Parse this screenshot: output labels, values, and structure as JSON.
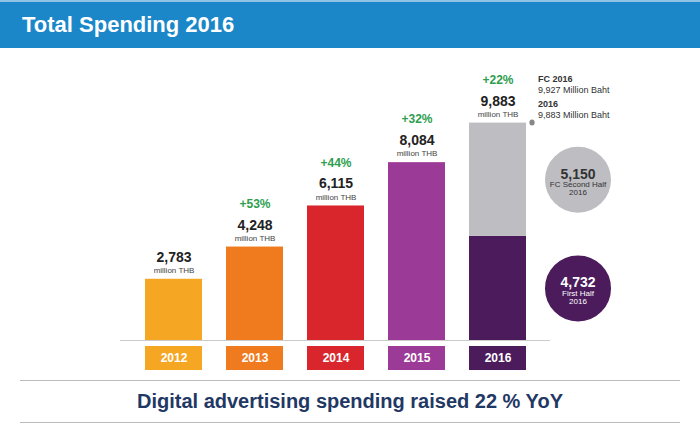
{
  "chart_data": {
    "type": "bar",
    "title": "Total Spending 2016",
    "caption": "Digital advertising spending raised 22 % YoY",
    "unit": "million THB",
    "categories": [
      "2012",
      "2013",
      "2014",
      "2015",
      "2016"
    ],
    "values": [
      2783,
      4248,
      6115,
      8084,
      9883
    ],
    "value_labels": [
      "2,783",
      "4,248",
      "6,115",
      "8,084",
      "9,883"
    ],
    "colors": [
      "#f5a623",
      "#f07a1e",
      "#d8262c",
      "#9c3a97",
      "#4b1b5c"
    ],
    "data_labels": true,
    "tick_labels": "x",
    "ylim": [
      0,
      12000
    ],
    "growth": [
      {
        "category": "2013",
        "value": 53,
        "label": "+53%"
      },
      {
        "category": "2014",
        "value": 44,
        "label": "+44%"
      },
      {
        "category": "2015",
        "value": 32,
        "label": "+32%"
      },
      {
        "category": "2016",
        "value": 22,
        "label": "+22%"
      }
    ],
    "breakdown": {
      "category": "2016",
      "segments": [
        {
          "name": "First Half 2016",
          "value": 4732,
          "value_label": "4,732",
          "color": "#4b1b5c"
        },
        {
          "name": "FC Second Half 2016",
          "value": 5150,
          "value_label": "5,150",
          "color": "#bdbdc2"
        }
      ]
    },
    "annotations": [
      {
        "text": "FC 2016",
        "value": 9927,
        "label": "9,927 Million Baht"
      },
      {
        "text": "2016",
        "value": 9883,
        "label": "9,883 Million Baht"
      }
    ]
  }
}
